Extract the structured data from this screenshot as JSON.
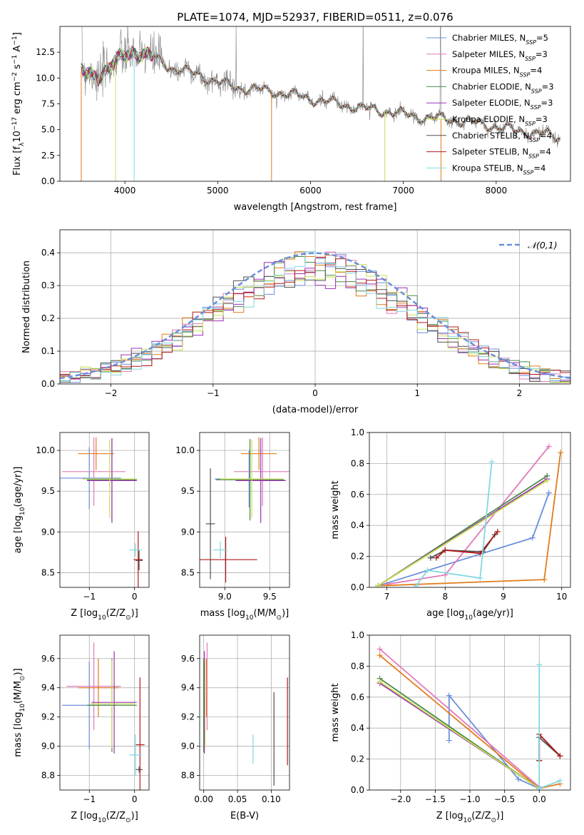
{
  "colors": {
    "chabrier_miles": "#6a8fdc",
    "salpeter_miles": "#e07ab8",
    "kroupa_miles": "#e07b1c",
    "chabrier_elodie": "#4a8a4a",
    "salpeter_elodie": "#9a30b8",
    "kroupa_elodie": "#c8e050",
    "chabrier_stelib": "#505050",
    "salpeter_stelib": "#b01818",
    "kroupa_stelib": "#80d8e0",
    "spectrum": "#808080",
    "normal": "#6a8fdc"
  },
  "chart_data": [
    {
      "id": "spectrum",
      "type": "line",
      "title": "PLATE=1074, MJD=52937, FIBERID=0511, z=0.076",
      "xlabel": "wavelength [Angstrom, rest frame]",
      "ylabel_parts": [
        "Flux [",
        "f",
        "λ",
        "10",
        "−17",
        " erg cm",
        "−2",
        " s",
        "−1",
        " A",
        "−1",
        "]"
      ],
      "xlim": [
        3300,
        8800
      ],
      "ylim": [
        0,
        15
      ],
      "xticks": [
        4000,
        5000,
        6000,
        7000,
        8000
      ],
      "yticks": [
        0.0,
        2.5,
        5.0,
        7.5,
        10.0,
        12.5
      ],
      "grid": false,
      "legend_position": "top-right",
      "legend": [
        {
          "key": "chabrier_miles",
          "name": "Chabrier MILES, N",
          "sub": "SSP",
          "val": "=5"
        },
        {
          "key": "salpeter_miles",
          "name": "Salpeter MILES, N",
          "sub": "SSP",
          "val": "=3"
        },
        {
          "key": "kroupa_miles",
          "name": "Kroupa MILES, N",
          "sub": "SSP",
          "val": "=4"
        },
        {
          "key": "chabrier_elodie",
          "name": "Chabrier ELODIE, N",
          "sub": "SSP",
          "val": "=3"
        },
        {
          "key": "salpeter_elodie",
          "name": "Salpeter ELODIE, N",
          "sub": "SSP",
          "val": "=3"
        },
        {
          "key": "kroupa_elodie",
          "name": "Kroupa ELODIE, N",
          "sub": "SSP",
          "val": "=3"
        },
        {
          "key": "chabrier_stelib",
          "name": "Chabrier STELIB, N",
          "sub": "SSP",
          "val": "=4"
        },
        {
          "key": "salpeter_stelib",
          "name": "Salpeter STELIB, N",
          "sub": "SSP",
          "val": "=4"
        },
        {
          "key": "kroupa_stelib",
          "name": "Kroupa STELIB, N",
          "sub": "SSP",
          "val": "=4"
        }
      ],
      "continuum": [
        [
          3530,
          10.6
        ],
        [
          3700,
          10.2
        ],
        [
          3900,
          11.5
        ],
        [
          4000,
          12.2
        ],
        [
          4100,
          12.6
        ],
        [
          4300,
          12.0
        ],
        [
          4500,
          11.0
        ],
        [
          4800,
          10.3
        ],
        [
          5000,
          9.6
        ],
        [
          5200,
          9.1
        ],
        [
          5500,
          8.8
        ],
        [
          5800,
          8.4
        ],
        [
          6000,
          8.0
        ],
        [
          6300,
          7.5
        ],
        [
          6600,
          7.0
        ],
        [
          6800,
          6.8
        ],
        [
          7000,
          6.5
        ],
        [
          7200,
          6.2
        ],
        [
          7500,
          6.0
        ],
        [
          7800,
          5.6
        ],
        [
          8000,
          5.3
        ],
        [
          8200,
          4.9
        ],
        [
          8500,
          4.6
        ],
        [
          8700,
          4.2
        ]
      ]
    },
    {
      "id": "residuals",
      "type": "line",
      "xlabel": "(data-model)/error",
      "ylabel": "Normed distribution",
      "xlim": [
        -2.5,
        2.5
      ],
      "ylim": [
        0,
        0.47
      ],
      "xticks": [
        -2,
        -1,
        0,
        1,
        2
      ],
      "yticks": [
        0.0,
        0.1,
        0.2,
        0.3,
        0.4
      ],
      "grid": true,
      "legend_position": "top-right",
      "legend": [
        {
          "key": "normal",
          "name": "𝒩(0,1)"
        }
      ],
      "normal_mu": 0,
      "normal_sigma": 1
    },
    {
      "id": "age_vs_Z",
      "type": "errorbar",
      "xlabel_parts": [
        "Z [log",
        "10",
        "(Z/Z",
        "⊙",
        ")]"
      ],
      "ylabel_parts": [
        "age  [log",
        "10",
        "(age/yr)]"
      ],
      "xlim": [
        -1.65,
        0.32
      ],
      "ylim": [
        8.32,
        10.22
      ],
      "xticks": [
        -1,
        0
      ],
      "yticks": [
        8.5,
        9.0,
        9.5,
        10.0
      ],
      "grid": true,
      "points": [
        {
          "key": "chabrier_miles",
          "x": -1.0,
          "xerr": 0.7,
          "y": 9.66,
          "yerr": 0.38
        },
        {
          "key": "salpeter_miles",
          "x": -0.9,
          "xerr": 0.7,
          "y": 9.74,
          "yerr": 0.42
        },
        {
          "key": "kroupa_miles",
          "x": -0.85,
          "xerr": 0.4,
          "y": 9.96,
          "yerr": 0.2
        },
        {
          "key": "chabrier_elodie",
          "x": -0.5,
          "xerr": 0.55,
          "y": 9.64,
          "yerr": 0.5
        },
        {
          "key": "salpeter_elodie",
          "x": -0.5,
          "xerr": 0.55,
          "y": 9.63,
          "yerr": 0.52
        },
        {
          "key": "kroupa_elodie",
          "x": -0.55,
          "xerr": 0.6,
          "y": 9.65,
          "yerr": 0.48
        },
        {
          "key": "chabrier_stelib",
          "x": 0.1,
          "xerr": 0.08,
          "y": 8.65,
          "yerr": 0.12
        },
        {
          "key": "salpeter_stelib",
          "x": 0.08,
          "xerr": 0.1,
          "y": 8.66,
          "yerr": 0.35
        },
        {
          "key": "kroupa_stelib",
          "x": 0.02,
          "xerr": 0.14,
          "y": 8.78,
          "yerr": 0.08
        }
      ]
    },
    {
      "id": "age_vs_mass",
      "type": "errorbar",
      "xlabel_parts": [
        "mass [log",
        "10",
        "(M/M",
        "⊙",
        ")]"
      ],
      "xlim": [
        8.72,
        9.72
      ],
      "ylim": [
        8.32,
        10.22
      ],
      "xticks": [
        9.0,
        9.5
      ],
      "yticks": [
        8.5,
        9.0,
        9.5,
        10.0
      ],
      "grid": true,
      "points": [
        {
          "key": "chabrier_miles",
          "x": 9.27,
          "xerr": 0.38,
          "y": 9.65,
          "yerr": 0.35
        },
        {
          "key": "salpeter_miles",
          "x": 9.42,
          "xerr": 0.32,
          "y": 9.74,
          "yerr": 0.42
        },
        {
          "key": "kroupa_miles",
          "x": 9.38,
          "xerr": 0.2,
          "y": 9.96,
          "yerr": 0.2
        },
        {
          "key": "chabrier_elodie",
          "x": 9.28,
          "xerr": 0.38,
          "y": 9.64,
          "yerr": 0.5
        },
        {
          "key": "salpeter_elodie",
          "x": 9.4,
          "xerr": 0.28,
          "y": 9.63,
          "yerr": 0.52
        },
        {
          "key": "kroupa_elodie",
          "x": 9.3,
          "xerr": 0.35,
          "y": 9.65,
          "yerr": 0.48
        },
        {
          "key": "chabrier_stelib",
          "x": 8.84,
          "xerr": 0.05,
          "y": 9.1,
          "yerr": 0.68
        },
        {
          "key": "salpeter_stelib",
          "x": 9.01,
          "xerr": 0.35,
          "y": 8.66,
          "yerr": 0.28
        },
        {
          "key": "kroupa_stelib",
          "x": 8.95,
          "xerr": 0.08,
          "y": 8.78,
          "yerr": 0.1
        }
      ]
    },
    {
      "id": "weight_vs_age",
      "type": "line",
      "xlabel_parts": [
        "age  [log",
        "10",
        "(age/yr)]"
      ],
      "ylabel": "mass weight",
      "xlim": [
        6.7,
        10.15
      ],
      "ylim": [
        0,
        1.0
      ],
      "xticks": [
        7,
        8,
        9,
        10
      ],
      "yticks": [
        0.0,
        0.2,
        0.4,
        0.6,
        0.8,
        1.0
      ],
      "grid": true,
      "series": [
        {
          "key": "chabrier_miles",
          "x": [
            6.85,
            9.5,
            9.78
          ],
          "y": [
            0.01,
            0.32,
            0.61
          ]
        },
        {
          "key": "salpeter_miles",
          "x": [
            7.0,
            8.0,
            9.78
          ],
          "y": [
            0.02,
            0.08,
            0.91
          ]
        },
        {
          "key": "kroupa_miles",
          "x": [
            6.85,
            9.7,
            9.98
          ],
          "y": [
            0.01,
            0.05,
            0.87
          ]
        },
        {
          "key": "chabrier_elodie",
          "x": [
            6.85,
            9.75
          ],
          "y": [
            0.01,
            0.72
          ]
        },
        {
          "key": "salpeter_elodie",
          "x": [
            6.85,
            9.75
          ],
          "y": [
            0.01,
            0.7
          ]
        },
        {
          "key": "kroupa_elodie",
          "x": [
            6.85,
            9.75
          ],
          "y": [
            0.01,
            0.69
          ]
        },
        {
          "key": "chabrier_stelib",
          "x": [
            7.75,
            8.0,
            8.65,
            8.85
          ],
          "y": [
            0.19,
            0.24,
            0.23,
            0.34
          ]
        },
        {
          "key": "salpeter_stelib",
          "x": [
            7.85,
            8.0,
            8.6,
            8.9
          ],
          "y": [
            0.19,
            0.24,
            0.22,
            0.36
          ]
        },
        {
          "key": "kroupa_stelib",
          "x": [
            7.5,
            7.7,
            8.6,
            8.8
          ],
          "y": [
            0.01,
            0.11,
            0.06,
            0.81
          ]
        }
      ]
    },
    {
      "id": "mass_vs_Z",
      "type": "errorbar",
      "xlabel_parts": [
        "Z [log",
        "10",
        "(Z/Z",
        "⊙",
        ")]"
      ],
      "ylabel_parts": [
        "mass [log",
        "10",
        "(M/M",
        "⊙",
        ")]"
      ],
      "xlim": [
        -1.65,
        0.32
      ],
      "ylim": [
        8.7,
        9.76
      ],
      "xticks": [
        -1,
        0
      ],
      "yticks": [
        8.8,
        9.0,
        9.2,
        9.4,
        9.6
      ],
      "grid": true,
      "points": [
        {
          "key": "chabrier_miles",
          "x": -1.0,
          "xerr": 0.6,
          "y": 9.28,
          "yerr": 0.3
        },
        {
          "key": "salpeter_miles",
          "x": -0.9,
          "xerr": 0.6,
          "y": 9.41,
          "yerr": 0.3
        },
        {
          "key": "kroupa_miles",
          "x": -0.8,
          "xerr": 0.45,
          "y": 9.4,
          "yerr": 0.2
        },
        {
          "key": "chabrier_elodie",
          "x": -0.5,
          "xerr": 0.55,
          "y": 9.28,
          "yerr": 0.32
        },
        {
          "key": "salpeter_elodie",
          "x": -0.45,
          "xerr": 0.5,
          "y": 9.3,
          "yerr": 0.35
        },
        {
          "key": "kroupa_elodie",
          "x": -0.5,
          "xerr": 0.5,
          "y": 9.29,
          "yerr": 0.3
        },
        {
          "key": "chabrier_stelib",
          "x": 0.1,
          "xerr": 0.08,
          "y": 8.84,
          "yerr": 0.02
        },
        {
          "key": "salpeter_stelib",
          "x": 0.12,
          "xerr": 0.1,
          "y": 9.01,
          "yerr": 0.46
        },
        {
          "key": "kroupa_stelib",
          "x": 0.02,
          "xerr": 0.14,
          "y": 8.94,
          "yerr": 0.14
        }
      ]
    },
    {
      "id": "mass_vs_ebv",
      "type": "errorbar",
      "xlabel": "E(B-V)",
      "xlim": [
        -0.006,
        0.127
      ],
      "ylim": [
        8.7,
        9.76
      ],
      "xticks": [
        0.0,
        0.05,
        0.1
      ],
      "yticks": [
        8.8,
        9.0,
        9.2,
        9.4,
        9.6
      ],
      "grid": true,
      "points": [
        {
          "key": "chabrier_miles",
          "x": 0.0,
          "xerr": 0,
          "y": 9.28,
          "yerr": 0.3
        },
        {
          "key": "salpeter_miles",
          "x": 0.005,
          "xerr": 0,
          "y": 9.41,
          "yerr": 0.3
        },
        {
          "key": "kroupa_miles",
          "x": 0.004,
          "xerr": 0,
          "y": 9.4,
          "yerr": 0.2
        },
        {
          "key": "chabrier_elodie",
          "x": 0.0,
          "xerr": 0,
          "y": 9.28,
          "yerr": 0.32
        },
        {
          "key": "salpeter_elodie",
          "x": 0.001,
          "xerr": 0,
          "y": 9.3,
          "yerr": 0.35
        },
        {
          "key": "kroupa_elodie",
          "x": 0.002,
          "xerr": 0,
          "y": 9.29,
          "yerr": 0.3
        },
        {
          "key": "chabrier_stelib",
          "x": 0.104,
          "xerr": 0,
          "y": 9.05,
          "yerr": 0.32
        },
        {
          "key": "salpeter_stelib",
          "x": 0.124,
          "xerr": 0,
          "y": 9.17,
          "yerr": 0.3
        },
        {
          "key": "kroupa_stelib",
          "x": 0.073,
          "xerr": 0,
          "y": 8.98,
          "yerr": 0.1
        }
      ]
    },
    {
      "id": "weight_vs_Z",
      "type": "line",
      "xlabel_parts": [
        "Z [log",
        "10",
        "(Z/Z",
        "⊙",
        ")]"
      ],
      "ylabel": "mass weight",
      "xlim": [
        -2.45,
        0.45
      ],
      "ylim": [
        0,
        1.0
      ],
      "xticks": [
        -2.0,
        -1.5,
        -1.0,
        -0.5,
        0.0
      ],
      "yticks": [
        0.0,
        0.2,
        0.4,
        0.6,
        0.8,
        1.0
      ],
      "grid": true,
      "series": [
        {
          "key": "chabrier_miles",
          "x": [
            -1.3,
            -1.3,
            -0.3,
            0.0
          ],
          "y": [
            0.32,
            0.61,
            0.07,
            0.01
          ]
        },
        {
          "key": "salpeter_miles",
          "x": [
            -2.3,
            0.0
          ],
          "y": [
            0.91,
            0.02
          ]
        },
        {
          "key": "kroupa_miles",
          "x": [
            -2.3,
            0.0,
            0.3
          ],
          "y": [
            0.87,
            0.01,
            0.04
          ]
        },
        {
          "key": "chabrier_elodie",
          "x": [
            -2.3,
            0.0
          ],
          "y": [
            0.72,
            0.01
          ]
        },
        {
          "key": "salpeter_elodie",
          "x": [
            -2.3,
            0.0
          ],
          "y": [
            0.69,
            0.01
          ]
        },
        {
          "key": "kroupa_elodie",
          "x": [
            -2.3,
            0.0
          ],
          "y": [
            0.7,
            0.01
          ]
        },
        {
          "key": "chabrier_stelib",
          "x": [
            0.0,
            0.0,
            0.3
          ],
          "y": [
            0.19,
            0.34,
            0.22
          ]
        },
        {
          "key": "salpeter_stelib",
          "x": [
            0.0,
            0.0,
            0.3
          ],
          "y": [
            0.19,
            0.36,
            0.22
          ]
        },
        {
          "key": "kroupa_stelib",
          "x": [
            0.0,
            0.0,
            0.3
          ],
          "y": [
            0.81,
            0.01,
            0.06
          ]
        }
      ]
    }
  ]
}
